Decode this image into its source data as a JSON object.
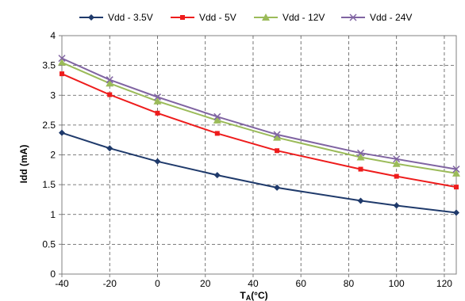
{
  "chart_data": {
    "type": "line",
    "xlabel_main": "T",
    "xlabel_sub": "A",
    "xlabel_unit": "(°C)",
    "ylabel": "Idd (mA)",
    "x_tick_labels": [
      "-40",
      "-20",
      "0",
      "20",
      "40",
      "60",
      "80",
      "100",
      "120"
    ],
    "y_ticks": [
      0,
      0.5,
      1,
      1.5,
      2,
      2.5,
      3,
      3.5,
      4
    ],
    "y_tick_labels": [
      "0",
      "0.5",
      "1",
      "1.5",
      "2",
      "2.5",
      "3",
      "3.5",
      "4"
    ],
    "xlim": [
      -40,
      125
    ],
    "ylim": [
      0,
      4
    ],
    "grid": true,
    "legend_position": "top",
    "series": [
      {
        "name": "Vdd - 3.5V",
        "color": "#1f3a6b",
        "marker": "diamond",
        "x": [
          -40,
          -20,
          0,
          25,
          50,
          85,
          100,
          125
        ],
        "values": [
          2.37,
          2.11,
          1.89,
          1.66,
          1.45,
          1.23,
          1.15,
          1.03
        ]
      },
      {
        "name": "Vdd - 5V",
        "color": "#ee1c1c",
        "marker": "square",
        "x": [
          -40,
          -20,
          0,
          25,
          50,
          85,
          100,
          125
        ],
        "values": [
          3.36,
          3.01,
          2.7,
          2.36,
          2.07,
          1.76,
          1.64,
          1.46
        ]
      },
      {
        "name": "Vdd - 12V",
        "color": "#9bbb59",
        "marker": "triangle",
        "x": [
          -40,
          -20,
          0,
          25,
          50,
          85,
          100,
          125
        ],
        "values": [
          3.55,
          3.2,
          2.9,
          2.58,
          2.29,
          1.96,
          1.85,
          1.69
        ]
      },
      {
        "name": "Vdd - 24V",
        "color": "#8064a2",
        "marker": "x",
        "x": [
          -40,
          -20,
          0,
          25,
          50,
          85,
          100,
          125
        ],
        "values": [
          3.62,
          3.26,
          2.97,
          2.64,
          2.34,
          2.03,
          1.93,
          1.76
        ]
      }
    ]
  }
}
